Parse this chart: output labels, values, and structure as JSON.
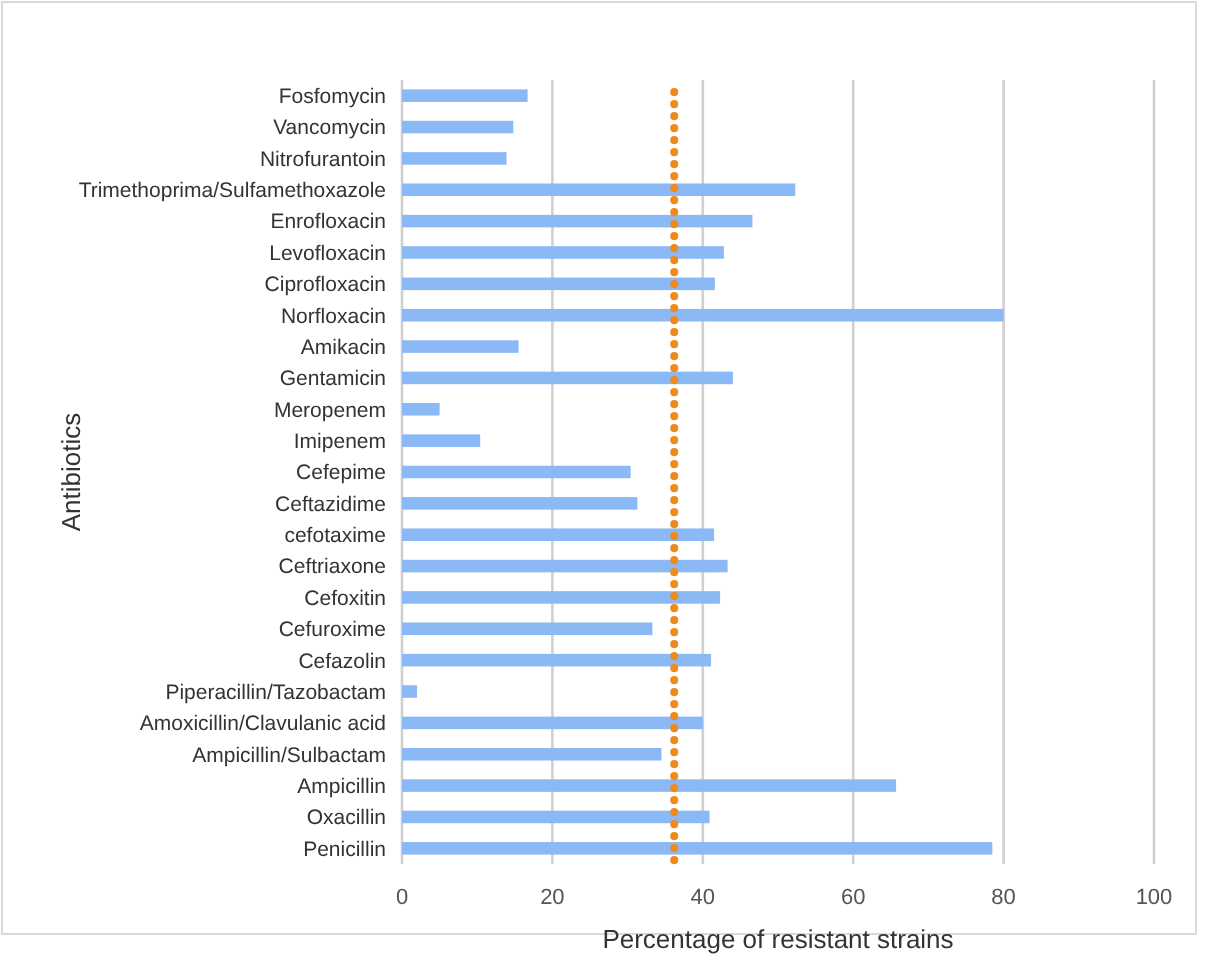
{
  "chart_data": {
    "type": "bar",
    "orientation": "horizontal",
    "xlabel": "Percentage of resistant strains",
    "ylabel": "Antibiotics",
    "categories": [
      "Fosfomycin",
      "Vancomycin",
      "Nitrofurantoin",
      "Trimethoprima/Sulfamethoxazole",
      "Enrofloxacin",
      "Levofloxacin",
      "Ciprofloxacin",
      "Norfloxacin",
      "Amikacin",
      "Gentamicin",
      "Meropenem",
      "Imipenem",
      "Cefepime",
      "Ceftazidime",
      "cefotaxime",
      "Ceftriaxone",
      "Cefoxitin",
      "Cefuroxime",
      "Cefazolin",
      "Piperacillin/Tazobactam",
      "Amoxicillin/Clavulanic acid",
      "Ampicillin/Sulbactam",
      "Ampicillin",
      "Oxacillin",
      "Penicillin"
    ],
    "values": [
      16.7,
      14.8,
      13.9,
      52.3,
      46.6,
      42.8,
      41.6,
      80,
      15.5,
      44,
      5,
      10.4,
      30.4,
      31.3,
      41.5,
      43.3,
      42.3,
      33.3,
      41.1,
      2,
      40,
      34.5,
      65.7,
      40.9,
      78.5
    ],
    "color": "#8ab9f5",
    "xlim": [
      0,
      100
    ],
    "xticks": [
      0,
      20,
      40,
      60,
      80,
      100
    ],
    "grid": "x",
    "ref_lines": [
      {
        "axis": "x",
        "value": 36.2,
        "color": "#f08a1c",
        "line_style": "dotted"
      }
    ]
  }
}
